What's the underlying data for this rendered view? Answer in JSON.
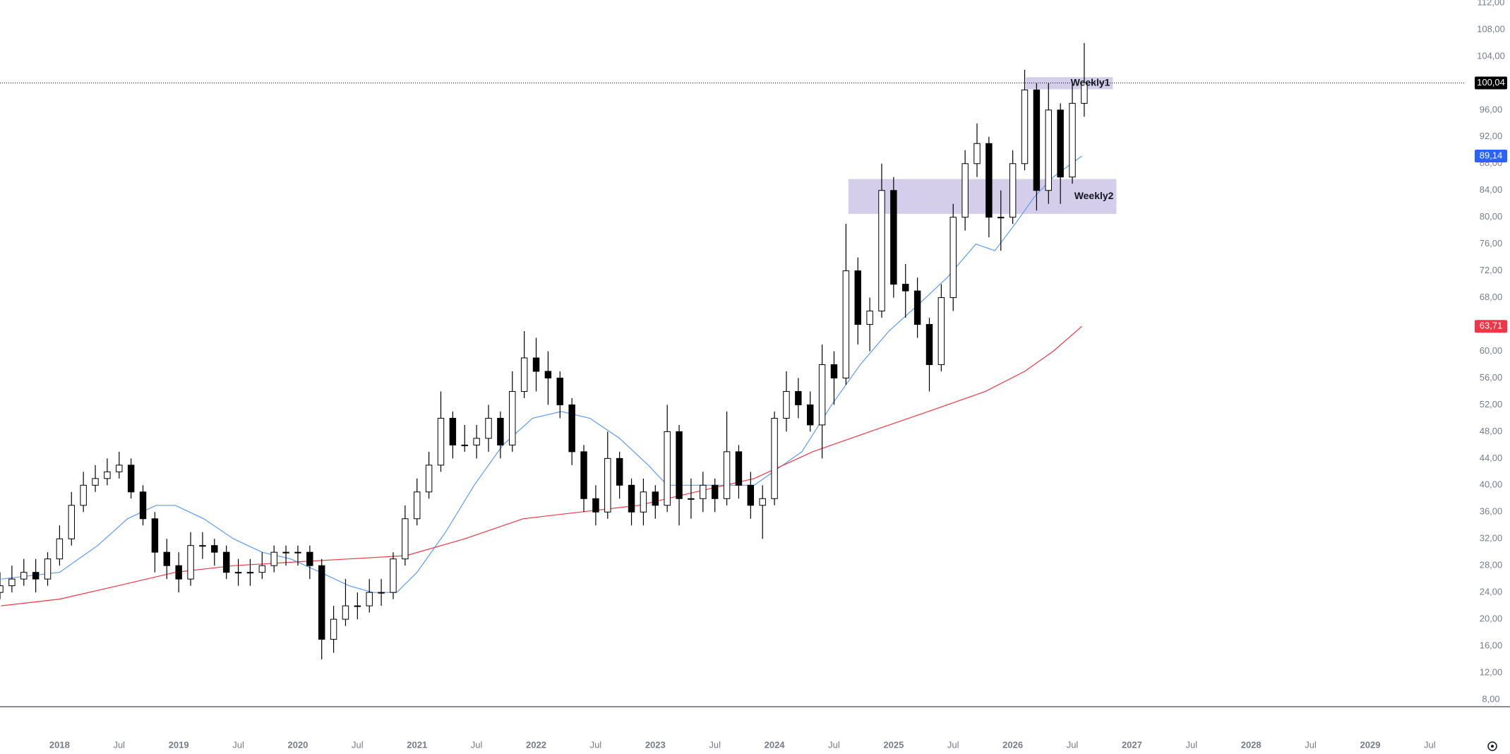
{
  "chart_data": {
    "type": "candlestick",
    "xlim": [
      2017.5,
      2029.8
    ],
    "ylim": [
      8,
      112
    ],
    "xticks": [
      2018,
      {
        "value": 2018.5,
        "label": "Jul"
      },
      2019,
      {
        "value": 2019.5,
        "label": "Jul"
      },
      2020,
      {
        "value": 2020.5,
        "label": "Jul"
      },
      2021,
      {
        "value": 2021.5,
        "label": "Jul"
      },
      2022,
      {
        "value": 2022.5,
        "label": "Jul"
      },
      2023,
      {
        "value": 2023.5,
        "label": "Jul"
      },
      2024,
      {
        "value": 2024.5,
        "label": "Jul"
      },
      2025,
      {
        "value": 2025.5,
        "label": "Jul"
      },
      2026,
      {
        "value": 2026.5,
        "label": "Jul"
      },
      2027,
      {
        "value": 2027.5,
        "label": "Jul"
      },
      2028,
      {
        "value": 2028.5,
        "label": "Jul"
      },
      2029,
      {
        "value": 2029.5,
        "label": "Jul"
      }
    ],
    "yticks": [
      {
        "value": 8,
        "label": "8,00"
      },
      {
        "value": 12,
        "label": "12,00"
      },
      {
        "value": 16,
        "label": "16,00"
      },
      {
        "value": 20,
        "label": "20,00"
      },
      {
        "value": 24,
        "label": "24,00"
      },
      {
        "value": 28,
        "label": "28,00"
      },
      {
        "value": 32,
        "label": "32,00"
      },
      {
        "value": 36,
        "label": "36,00"
      },
      {
        "value": 40,
        "label": "40,00"
      },
      {
        "value": 44,
        "label": "44,00"
      },
      {
        "value": 48,
        "label": "48,00"
      },
      {
        "value": 52,
        "label": "52,00"
      },
      {
        "value": 56,
        "label": "56,00"
      },
      {
        "value": 60,
        "label": "60,00"
      },
      {
        "value": 64,
        "label": "64,00"
      },
      {
        "value": 68,
        "label": "68,00"
      },
      {
        "value": 72,
        "label": "72,00"
      },
      {
        "value": 76,
        "label": "76,00"
      },
      {
        "value": 80,
        "label": "80,00"
      },
      {
        "value": 84,
        "label": "84,00"
      },
      {
        "value": 88,
        "label": "88,00"
      },
      {
        "value": 92,
        "label": "92,00"
      },
      {
        "value": 96,
        "label": "96,00"
      },
      {
        "value": 100,
        "label": "100,00"
      },
      {
        "value": 104,
        "label": "104,00"
      },
      {
        "value": 108,
        "label": "108,00"
      },
      {
        "value": 112,
        "label": "112,00"
      }
    ],
    "grid": false,
    "up_color": "#ffffff",
    "down_color": "#000000",
    "x": [
      2017.5,
      2017.6,
      2017.7,
      2017.8,
      2017.9,
      2018.0,
      2018.1,
      2018.2,
      2018.3,
      2018.4,
      2018.5,
      2018.6,
      2018.7,
      2018.8,
      2018.9,
      2019.0,
      2019.1,
      2019.2,
      2019.3,
      2019.4,
      2019.5,
      2019.6,
      2019.7,
      2019.8,
      2019.9,
      2020.0,
      2020.1,
      2020.2,
      2020.3,
      2020.4,
      2020.5,
      2020.6,
      2020.7,
      2020.8,
      2020.9,
      2021.0,
      2021.1,
      2021.2,
      2021.3,
      2021.4,
      2021.5,
      2021.6,
      2021.7,
      2021.8,
      2021.9,
      2022.0,
      2022.1,
      2022.2,
      2022.3,
      2022.4,
      2022.5,
      2022.6,
      2022.7,
      2022.8,
      2022.9,
      2023.0,
      2023.1,
      2023.2,
      2023.3,
      2023.4,
      2023.5,
      2023.6,
      2023.7,
      2023.8,
      2023.9,
      2024.0,
      2024.1,
      2024.2,
      2024.3,
      2024.4,
      2024.5,
      2024.6,
      2024.7,
      2024.8,
      2024.9,
      2025.0,
      2025.1,
      2025.2,
      2025.3,
      2025.4,
      2025.5,
      2025.6,
      2025.7,
      2025.8,
      2025.9,
      2026.0,
      2026.1,
      2026.2,
      2026.3,
      2026.4,
      2026.5,
      2026.6
    ],
    "open": [
      24,
      25,
      26,
      27,
      26,
      29,
      32,
      37,
      40,
      41,
      42,
      43,
      39,
      35,
      30,
      28,
      26,
      31,
      31,
      30,
      27,
      27,
      27,
      28,
      30,
      30,
      30,
      28,
      17,
      20,
      22,
      22,
      24,
      24,
      29,
      35,
      39,
      43,
      50,
      46,
      46,
      47,
      50,
      46,
      54,
      59,
      57,
      56,
      52,
      45,
      38,
      36,
      44,
      40,
      36,
      39,
      37,
      48,
      38,
      38,
      40,
      38,
      45,
      40,
      37,
      38,
      50,
      54,
      52,
      49,
      58,
      56,
      72,
      64,
      66,
      84,
      70,
      69,
      64,
      58,
      68,
      80,
      88,
      91,
      80,
      80,
      88,
      99,
      84,
      96,
      86,
      97
    ],
    "high": [
      27,
      28,
      29,
      29,
      30,
      34,
      39,
      42,
      43,
      44,
      45,
      44,
      40,
      36,
      32,
      30,
      33,
      33,
      32,
      31,
      29,
      29,
      30,
      31,
      31,
      31,
      31,
      29,
      22,
      26,
      24,
      26,
      26,
      30,
      37,
      41,
      45,
      54,
      51,
      49,
      49,
      52,
      51,
      57,
      63,
      62,
      60,
      57,
      53,
      46,
      40,
      48,
      45,
      41,
      41,
      40,
      52,
      49,
      41,
      42,
      41,
      51,
      46,
      42,
      40,
      51,
      57,
      56,
      54,
      61,
      60,
      79,
      74,
      68,
      88,
      86,
      73,
      71,
      65,
      70,
      82,
      90,
      94,
      92,
      84,
      90,
      102,
      100,
      100,
      97,
      100,
      106
    ],
    "low": [
      23,
      24,
      25,
      24,
      25,
      28,
      31,
      36,
      39,
      40,
      41,
      38,
      34,
      27,
      26,
      24,
      25,
      29,
      28,
      26,
      25,
      25,
      26,
      27,
      28,
      28,
      26,
      14,
      15,
      19,
      20,
      21,
      22,
      23,
      28,
      34,
      38,
      42,
      44,
      45,
      44,
      45,
      44,
      45,
      53,
      54,
      52,
      50,
      43,
      36,
      34,
      35,
      38,
      34,
      34,
      35,
      36,
      34,
      35,
      36,
      36,
      37,
      38,
      35,
      32,
      37,
      48,
      50,
      48,
      44,
      52,
      55,
      61,
      60,
      65,
      68,
      65,
      62,
      54,
      57,
      66,
      78,
      86,
      77,
      75,
      79,
      87,
      81,
      82,
      82,
      85,
      95
    ],
    "close": [
      25,
      26,
      27,
      26,
      29,
      32,
      37,
      40,
      41,
      42,
      43,
      39,
      35,
      30,
      28,
      26,
      31,
      31,
      30,
      27,
      27,
      27,
      28,
      30,
      30,
      30,
      28,
      17,
      20,
      22,
      22,
      24,
      24,
      29,
      35,
      39,
      43,
      50,
      46,
      46,
      47,
      50,
      46,
      54,
      59,
      57,
      56,
      52,
      45,
      38,
      36,
      44,
      40,
      36,
      39,
      37,
      48,
      38,
      38,
      40,
      38,
      45,
      40,
      37,
      38,
      50,
      54,
      52,
      49,
      58,
      56,
      72,
      64,
      66,
      84,
      70,
      69,
      64,
      58,
      68,
      80,
      88,
      91,
      80,
      80,
      88,
      99,
      84,
      96,
      86,
      97,
      100.04
    ],
    "lines": [
      {
        "color": "#5b9cf6",
        "x": [
          2017.51,
          2018.0,
          2018.32,
          2018.57,
          2018.81,
          2018.97,
          2019.21,
          2019.46,
          2019.7,
          2019.94,
          2020.19,
          2020.43,
          2020.63,
          2020.83,
          2021.0,
          2021.24,
          2021.48,
          2021.72,
          2021.97,
          2022.21,
          2022.45,
          2022.7,
          2022.94,
          2023.1,
          2023.34,
          2023.59,
          2023.83,
          2023.99,
          2024.23,
          2024.48,
          2024.72,
          2024.96,
          2025.21,
          2025.45,
          2025.69,
          2025.85,
          2026.02,
          2026.18,
          2026.34,
          2026.58
        ],
        "values": [
          26,
          27,
          31,
          35,
          37,
          37,
          35,
          32,
          30,
          29,
          27,
          25,
          24,
          24,
          27,
          33,
          40,
          46,
          50,
          51,
          50,
          47,
          43,
          40,
          40,
          40,
          40,
          42,
          45,
          52,
          58,
          63,
          67,
          71,
          76,
          75,
          79,
          83,
          86,
          89.14
        ]
      },
      {
        "color": "#f23645",
        "x": [
          2017.51,
          2018.0,
          2018.49,
          2018.97,
          2019.46,
          2019.94,
          2020.43,
          2020.91,
          2021.4,
          2021.89,
          2022.37,
          2022.86,
          2023.34,
          2023.83,
          2024.32,
          2024.8,
          2025.29,
          2025.77,
          2026.1,
          2026.34,
          2026.58
        ],
        "values": [
          22,
          23,
          25,
          27,
          28,
          28.5,
          29,
          29.5,
          32,
          35,
          36,
          37,
          39,
          41,
          45,
          48,
          51,
          54,
          57,
          60,
          63.71
        ]
      }
    ],
    "price_labels": [
      {
        "value": 100.04,
        "label": "100,04",
        "color": "#000000",
        "dotted_line": true
      },
      {
        "value": 89.14,
        "label": "89,14",
        "color": "#2962ff",
        "dotted_line": false
      },
      {
        "value": 63.71,
        "label": "63,71",
        "color": "#f23645",
        "dotted_line": false
      }
    ],
    "zones": [
      {
        "label": "Weekly1",
        "x": [
          2026.11,
          2026.84
        ],
        "y": [
          99.1,
          100.9
        ],
        "color": "rgba(179,165,219,0.55)"
      },
      {
        "label": "Weekly2",
        "x": [
          2024.62,
          2026.87
        ],
        "y": [
          80.5,
          85.7
        ],
        "color": "rgba(179,165,219,0.55)"
      }
    ]
  }
}
